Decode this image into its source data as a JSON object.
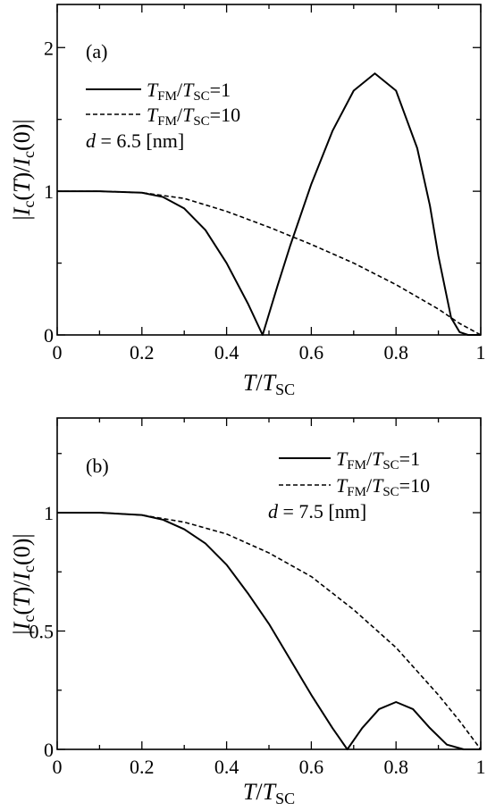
{
  "chart_data": [
    {
      "type": "line",
      "panel_label": "(a)",
      "xlabel": "T/T_SC",
      "ylabel": "|I_c(T)/I_c(0)|",
      "xlim": [
        0,
        1
      ],
      "ylim": [
        0,
        2.3
      ],
      "x_ticks": [
        "0",
        "0.2",
        "0.4",
        "0.6",
        "0.8",
        "1"
      ],
      "y_ticks": [
        "0",
        "1",
        "2"
      ],
      "legend_position": "upper-left",
      "annotation": "d = 6.5 [nm]",
      "series": [
        {
          "name": "T_FM/T_SC=1",
          "style": "solid",
          "x": [
            0,
            0.1,
            0.2,
            0.25,
            0.3,
            0.35,
            0.4,
            0.45,
            0.485,
            0.52,
            0.55,
            0.6,
            0.65,
            0.7,
            0.75,
            0.8,
            0.85,
            0.88,
            0.9,
            0.93,
            0.95,
            0.97,
            1.0
          ],
          "y": [
            1.0,
            1.0,
            0.99,
            0.96,
            0.88,
            0.73,
            0.5,
            0.22,
            0.0,
            0.34,
            0.62,
            1.05,
            1.42,
            1.7,
            1.82,
            1.7,
            1.3,
            0.9,
            0.55,
            0.12,
            0.02,
            0.0,
            0.0
          ]
        },
        {
          "name": "T_FM/T_SC=10",
          "style": "dashed",
          "x": [
            0,
            0.1,
            0.2,
            0.3,
            0.4,
            0.5,
            0.6,
            0.7,
            0.8,
            0.9,
            0.95,
            1.0
          ],
          "y": [
            1.0,
            1.0,
            0.99,
            0.95,
            0.86,
            0.75,
            0.63,
            0.5,
            0.35,
            0.18,
            0.08,
            0.0
          ]
        }
      ]
    },
    {
      "type": "line",
      "panel_label": "(b)",
      "xlabel": "T/T_SC",
      "ylabel": "|I_c(T)/I_c(0)|",
      "xlim": [
        0,
        1
      ],
      "ylim": [
        0,
        1.4
      ],
      "x_ticks": [
        "0",
        "0.2",
        "0.4",
        "0.6",
        "0.8",
        "1"
      ],
      "y_ticks": [
        "0",
        "0.5",
        "1"
      ],
      "legend_position": "upper-right",
      "annotation": "d = 7.5 [nm]",
      "series": [
        {
          "name": "T_FM/T_SC=1",
          "style": "solid",
          "x": [
            0,
            0.1,
            0.2,
            0.25,
            0.3,
            0.35,
            0.4,
            0.45,
            0.5,
            0.55,
            0.6,
            0.65,
            0.685,
            0.72,
            0.76,
            0.8,
            0.84,
            0.88,
            0.92,
            0.96,
            1.0
          ],
          "y": [
            1.0,
            1.0,
            0.99,
            0.97,
            0.93,
            0.87,
            0.78,
            0.66,
            0.53,
            0.38,
            0.23,
            0.09,
            0.0,
            0.09,
            0.17,
            0.2,
            0.17,
            0.09,
            0.02,
            0.0,
            0.0
          ]
        },
        {
          "name": "T_FM/T_SC=10",
          "style": "dashed",
          "x": [
            0,
            0.1,
            0.2,
            0.3,
            0.4,
            0.5,
            0.6,
            0.7,
            0.8,
            0.9,
            0.95,
            1.0
          ],
          "y": [
            1.0,
            1.0,
            0.99,
            0.96,
            0.91,
            0.83,
            0.73,
            0.59,
            0.43,
            0.23,
            0.12,
            0.0
          ]
        }
      ]
    }
  ]
}
